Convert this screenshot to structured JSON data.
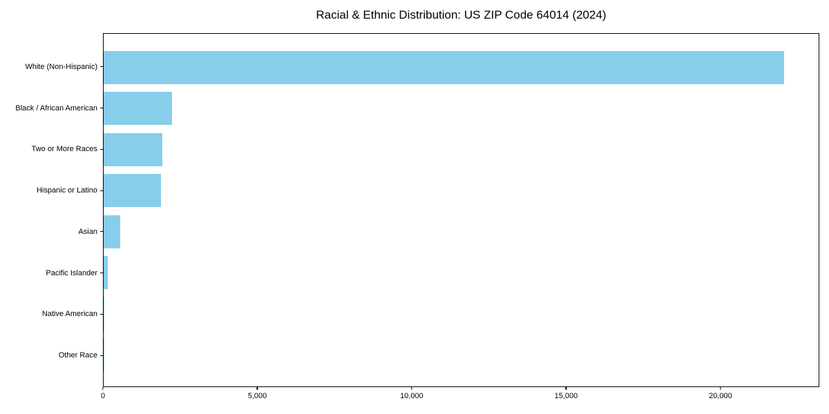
{
  "chart_data": {
    "type": "bar",
    "orientation": "horizontal",
    "title": "Racial & Ethnic Distribution: US ZIP Code 64014 (2024)",
    "categories": [
      "White (Non-Hispanic)",
      "Black / African American",
      "Two or More Races",
      "Hispanic or Latino",
      "Asian",
      "Pacific Islander",
      "Native American",
      "Other Race"
    ],
    "values": [
      22070,
      2220,
      1900,
      1850,
      545,
      130,
      30,
      10
    ],
    "xlabel": "",
    "ylabel": "",
    "xlim": [
      0,
      23200
    ],
    "xticks": {
      "values": [
        0,
        5000,
        10000,
        15000,
        20000
      ],
      "labels": [
        "0",
        "5,000",
        "10,000",
        "15,000",
        "20,000"
      ]
    },
    "grid": false,
    "legend": null,
    "bar_color": "#87CEEB",
    "background_color": "#FFFFFF",
    "spine_color": "#000000"
  }
}
